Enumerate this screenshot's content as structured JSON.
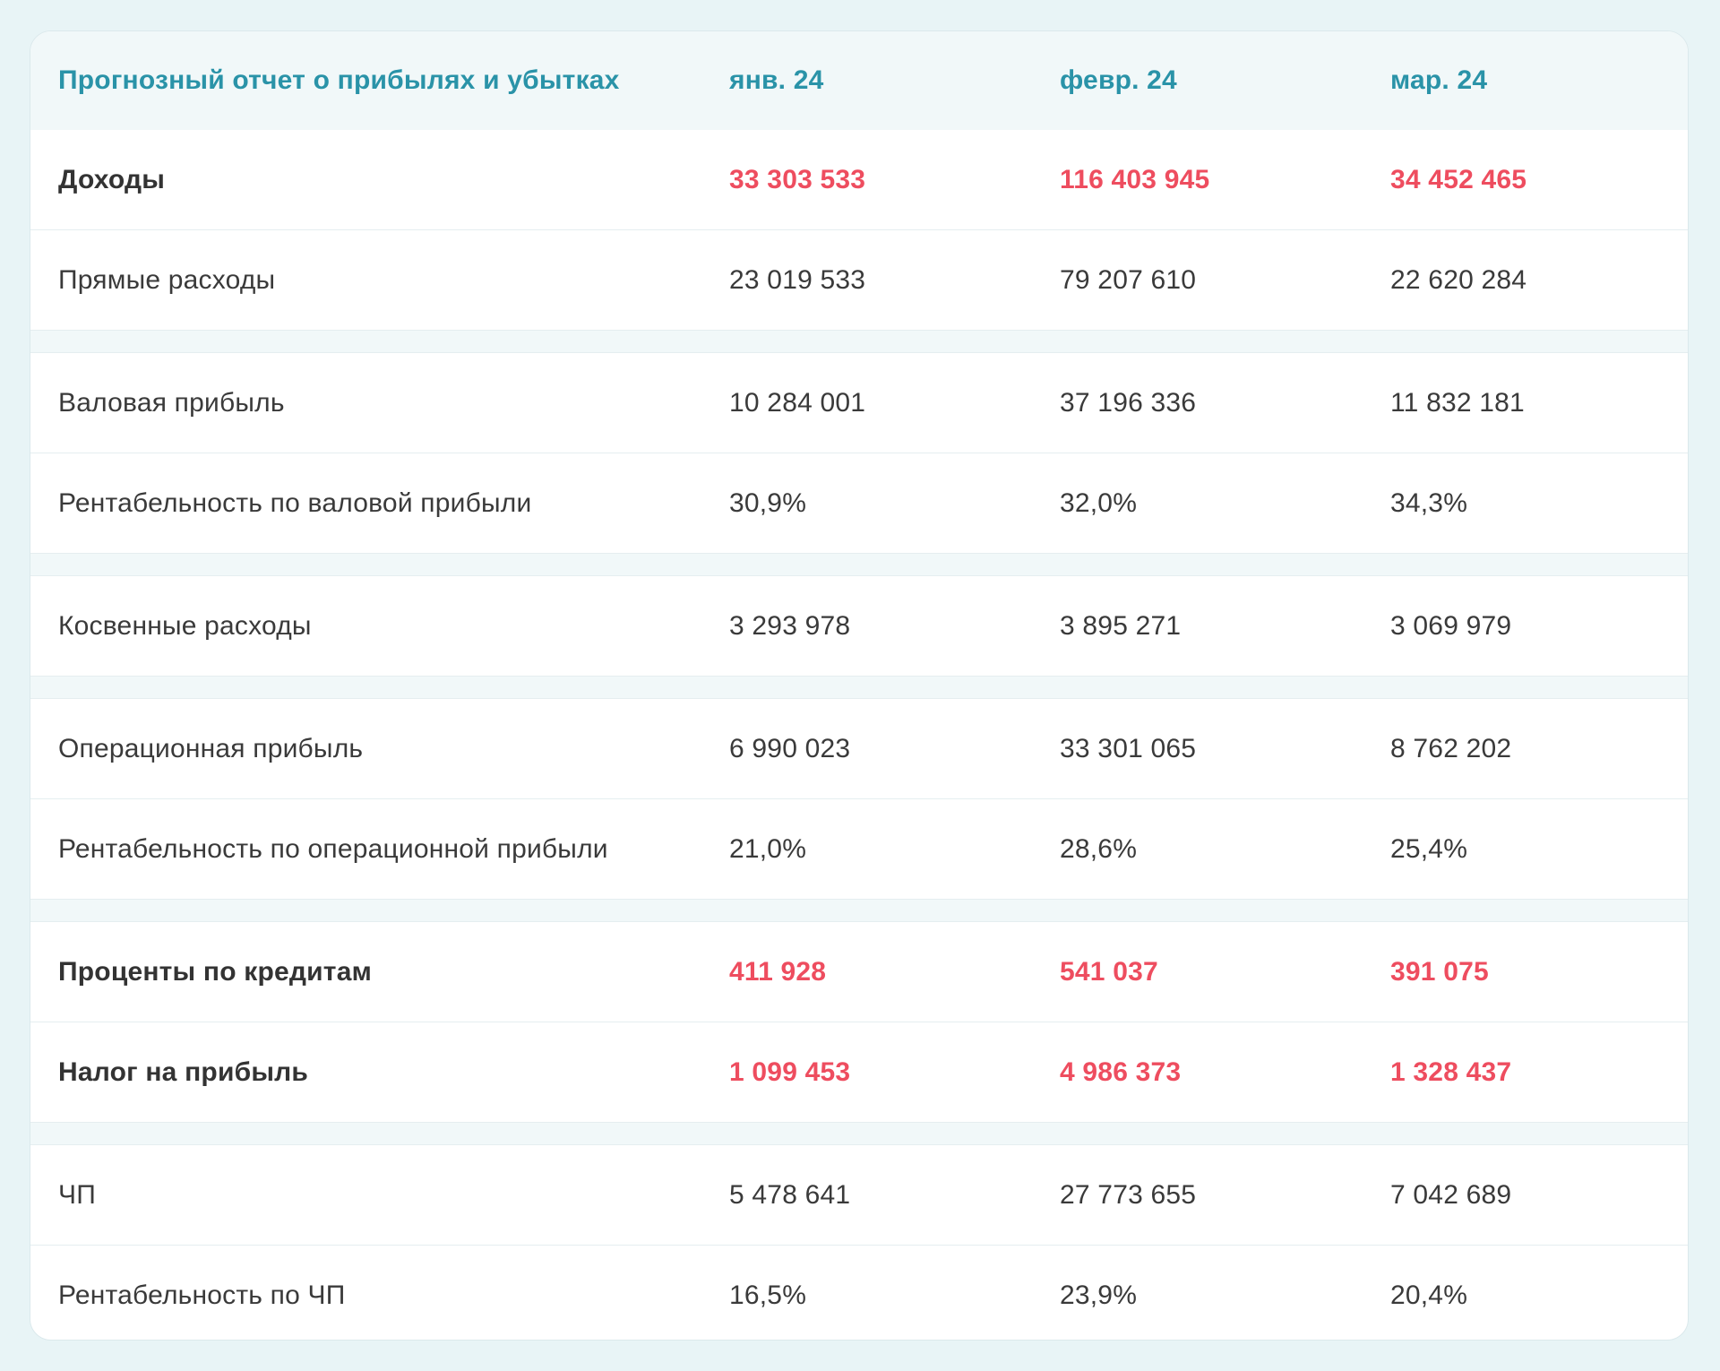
{
  "header": {
    "title": "Прогнозный отчет о прибылях и убытках",
    "months": [
      "янв. 24",
      "февр. 24",
      "мар. 24"
    ]
  },
  "sections": [
    {
      "rows": [
        {
          "label": "Доходы",
          "values": [
            "33 303 533",
            "116 403 945",
            "34 452 465"
          ]
        },
        {
          "label": "Прямые расходы",
          "values": [
            "23 019 533",
            "79 207 610",
            "22 620 284"
          ]
        }
      ]
    },
    {
      "rows": [
        {
          "label": "Валовая прибыль",
          "values": [
            "10 284 001",
            "37 196 336",
            "11 832 181"
          ]
        },
        {
          "label": "Рентабельность по валовой прибыли",
          "values": [
            "30,9%",
            "32,0%",
            "34,3%"
          ]
        }
      ]
    },
    {
      "rows": [
        {
          "label": "Косвенные расходы",
          "values": [
            "3 293 978",
            "3 895 271",
            "3 069 979"
          ]
        }
      ]
    },
    {
      "rows": [
        {
          "label": "Операционная прибыль",
          "values": [
            "6 990 023",
            "33 301 065",
            "8 762 202"
          ]
        },
        {
          "label": "Рентабельность по операционной прибыли",
          "values": [
            "21,0%",
            "28,6%",
            "25,4%"
          ]
        }
      ]
    },
    {
      "rows": [
        {
          "label": "Проценты по кредитам",
          "values": [
            "411 928",
            "541 037",
            "391 075"
          ]
        },
        {
          "label": "Налог на прибыль",
          "values": [
            "1 099 453",
            "4 986 373",
            "1 328 437"
          ]
        }
      ]
    },
    {
      "rows": [
        {
          "label": "ЧП",
          "values": [
            "5 478 641",
            "27 773 655",
            "7 042 689"
          ]
        },
        {
          "label": "Рентабельность по ЧП",
          "values": [
            "16,5%",
            "23,9%",
            "20,4%"
          ]
        }
      ]
    }
  ],
  "colors": {
    "header_text": "#2a93a8",
    "highlight_value": "#ee4d5f",
    "body_text": "#3a3a3a",
    "band_background": "#f1f8f9",
    "page_background": "#e8f4f6"
  }
}
